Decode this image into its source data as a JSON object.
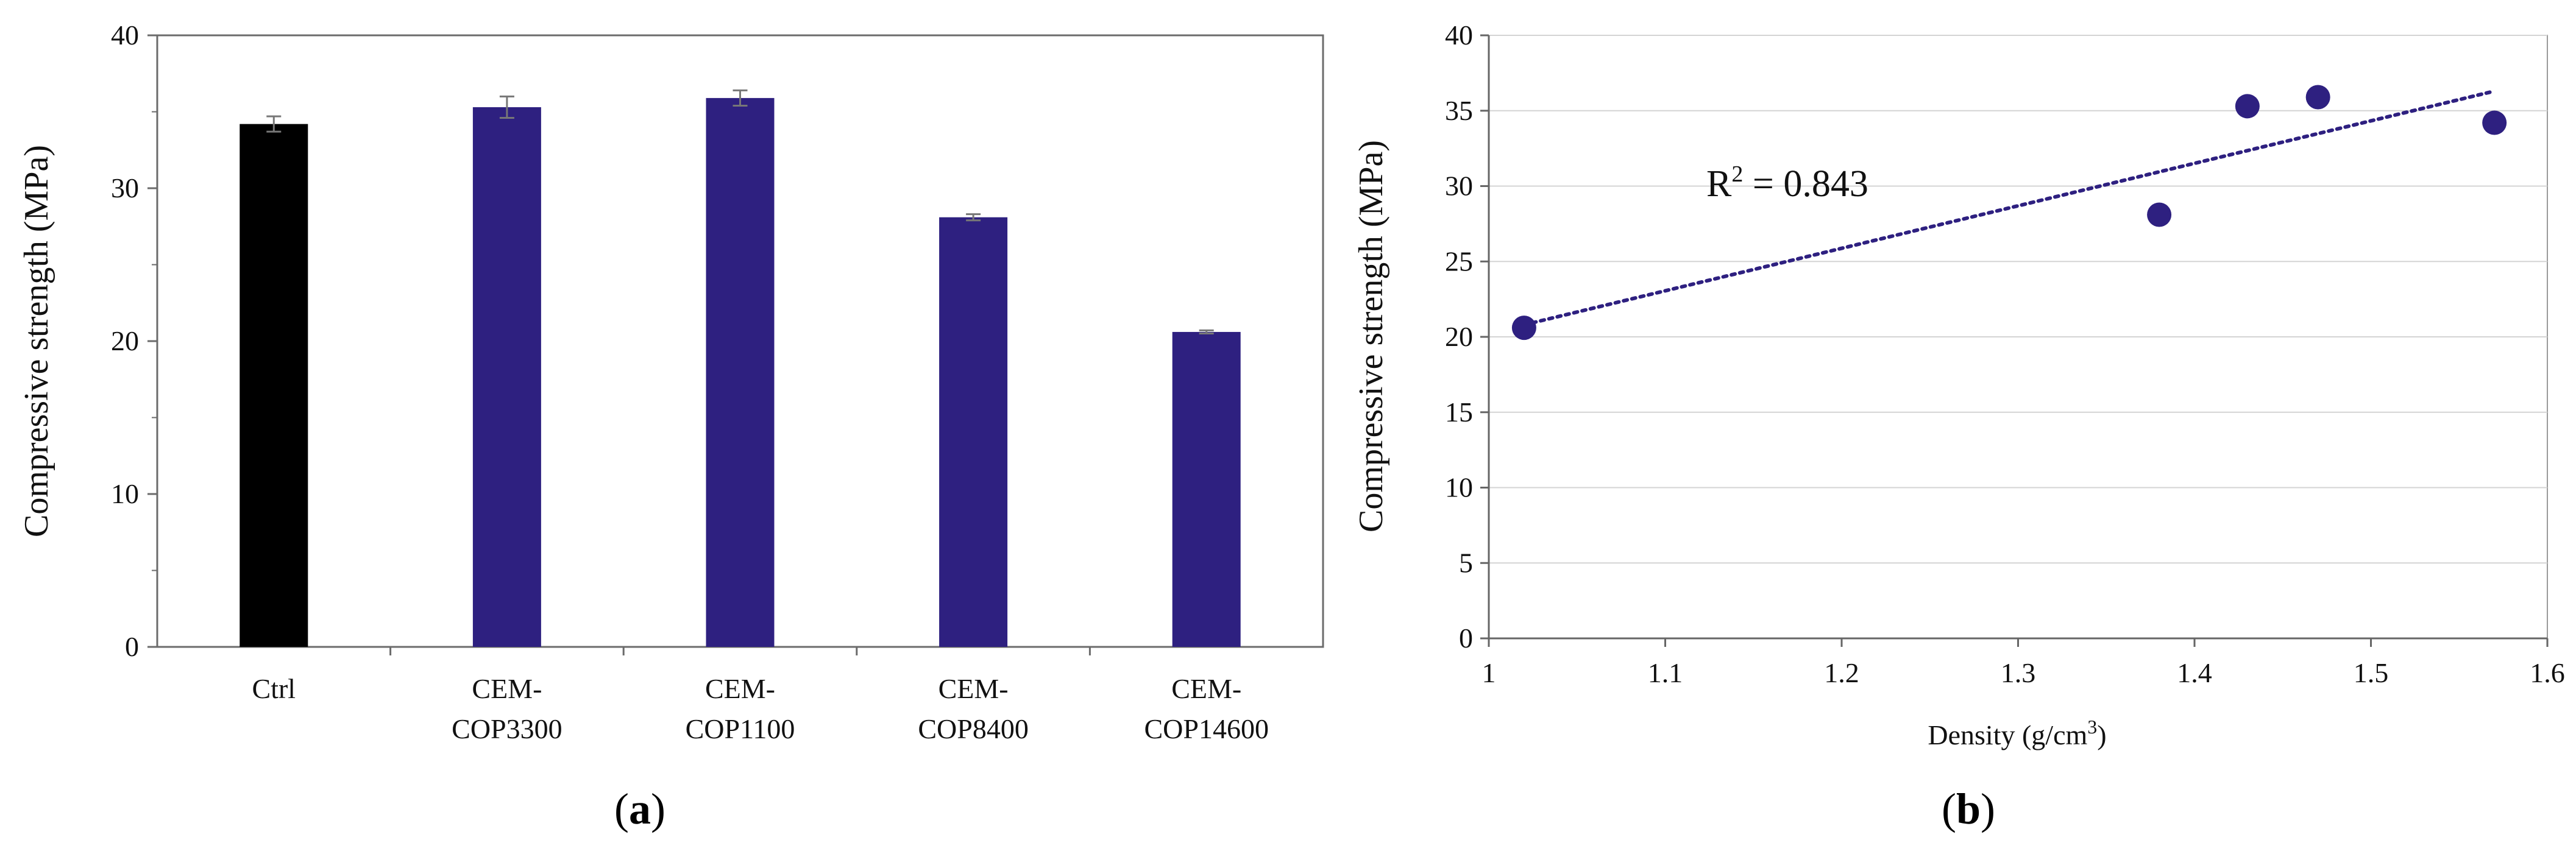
{
  "chart_data": [
    {
      "type": "bar",
      "panel_label_prefix": "(",
      "panel_label": "a",
      "panel_label_suffix": ")",
      "ylabel": "Compressive strength (MPa)",
      "xlabel": "",
      "ylim": [
        0,
        40
      ],
      "yticks": [
        "0",
        "10",
        "20",
        "30",
        "40"
      ],
      "categories": [
        {
          "line1": "Ctrl",
          "line2": ""
        },
        {
          "line1": "CEM-",
          "line2": "COP3300"
        },
        {
          "line1": "CEM-",
          "line2": "COP1100"
        },
        {
          "line1": "CEM-",
          "line2": "COP8400"
        },
        {
          "line1": "CEM-",
          "line2": "COP14600"
        }
      ],
      "values": [
        34.2,
        35.3,
        35.9,
        28.1,
        20.6
      ],
      "errors": [
        0.5,
        0.7,
        0.5,
        0.2,
        0.1
      ],
      "colors": [
        "#000000",
        "#2e2080",
        "#2e2080",
        "#2e2080",
        "#2e2080"
      ]
    },
    {
      "type": "scatter",
      "panel_label_prefix": "(",
      "panel_label": "b",
      "panel_label_suffix": ")",
      "ylabel": "Compressive strength (MPa)",
      "xlabel_main": "Density (g/cm",
      "xlabel_sup": "3",
      "xlabel_end": ")",
      "xlim": [
        1,
        1.6
      ],
      "ylim": [
        0,
        40
      ],
      "xticks": [
        "1",
        "1.1",
        "1.2",
        "1.3",
        "1.4",
        "1.5",
        "1.6"
      ],
      "yticks": [
        "0",
        "5",
        "10",
        "15",
        "20",
        "25",
        "30",
        "35",
        "40"
      ],
      "x": [
        1.02,
        1.38,
        1.43,
        1.47,
        1.57
      ],
      "y": [
        20.6,
        28.1,
        35.3,
        35.9,
        34.2
      ],
      "trendline": {
        "x": [
          1.02,
          1.57
        ],
        "y": [
          20.8,
          36.3
        ]
      },
      "annotation_r": "R",
      "annotation_sup": "2",
      "annotation_value": " = 0.843",
      "color": "#2e2080"
    }
  ]
}
